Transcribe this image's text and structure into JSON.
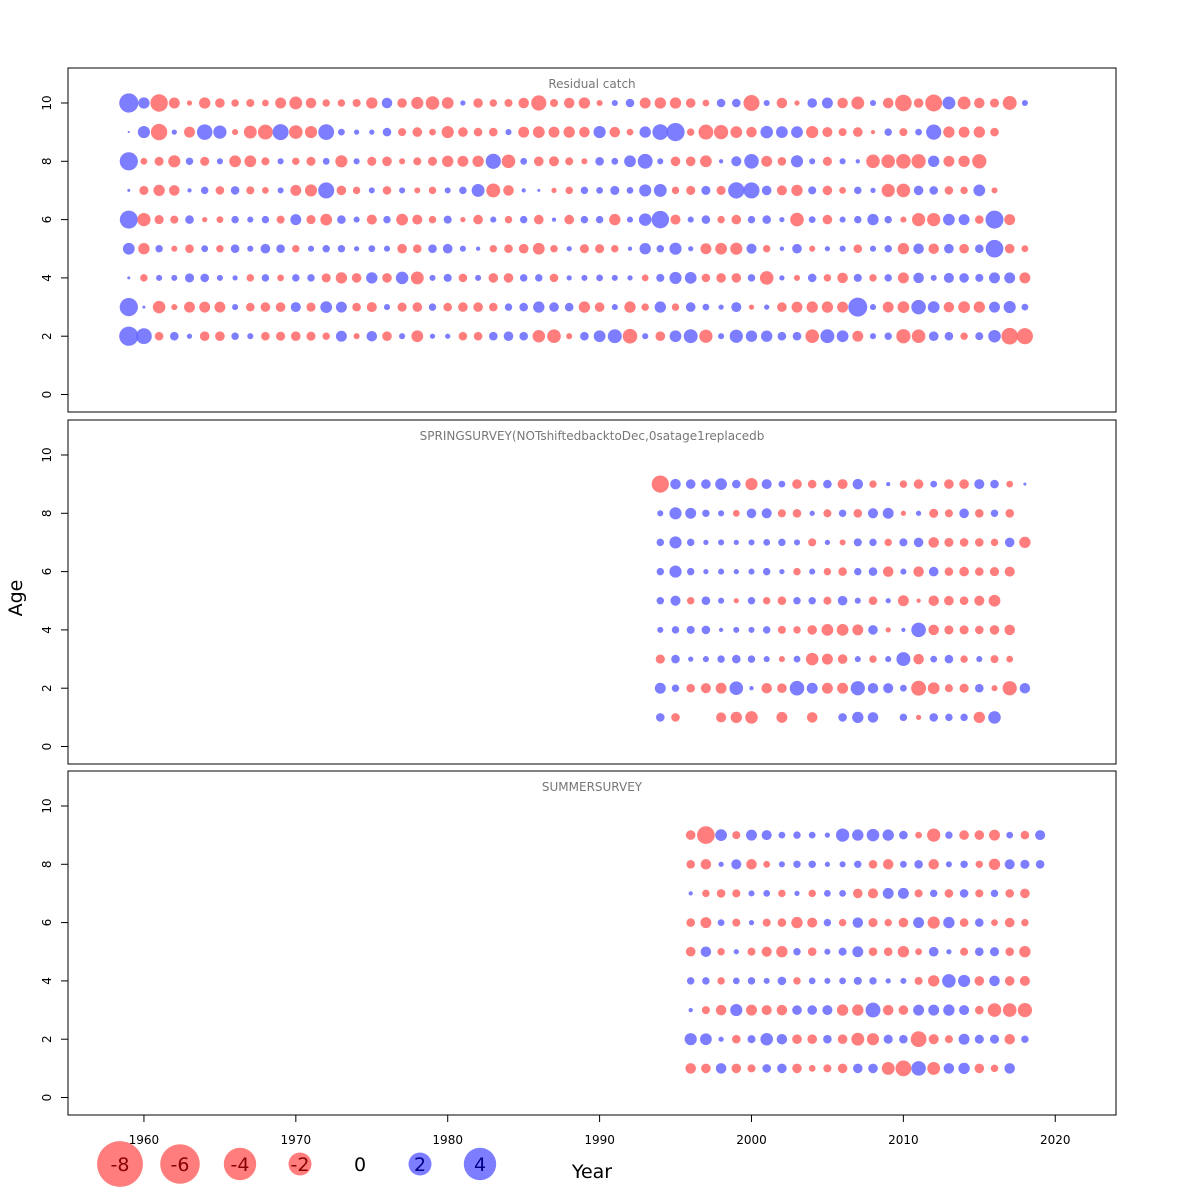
{
  "chart_data": {
    "type": "bubble",
    "xlabel": "Year",
    "ylabel": "Age",
    "xlim": [
      1955,
      2024
    ],
    "ylim": [
      -0.6,
      11.2
    ],
    "x_ticks": [
      1960,
      1970,
      1980,
      1990,
      2000,
      2010,
      2020
    ],
    "y_ticks": [
      0,
      2,
      4,
      6,
      8,
      10
    ],
    "colors": {
      "positive": "#6666ff",
      "negative": "#ff6666"
    },
    "legend": {
      "position": "bottom",
      "items": [
        {
          "label": "-8",
          "value": -8
        },
        {
          "label": "-6",
          "value": -6
        },
        {
          "label": "-4",
          "value": -4
        },
        {
          "label": "-2",
          "value": -2
        },
        {
          "label": "0",
          "value": 0
        },
        {
          "label": "2",
          "value": 2
        },
        {
          "label": "4",
          "value": 4
        }
      ]
    },
    "panels": [
      {
        "title": "Residual catch",
        "year_start": 1959,
        "ages": [
          2,
          3,
          4,
          5,
          6,
          7,
          8,
          9,
          10
        ],
        "rows": {
          "2": [
            4.0,
            2.7,
            -0.8,
            0.8,
            0.3,
            -1.0,
            -1.0,
            0.6,
            0.4,
            -0.8,
            -0.9,
            -1.0,
            -0.9,
            -0.6,
            1.3,
            -0.4,
            1.2,
            -1.0,
            0.4,
            -1.5,
            0.3,
            0.3,
            -0.8,
            -0.8,
            0.8,
            1.0,
            0.8,
            -1.7,
            -2.0,
            -0.4,
            0.8,
            1.5,
            2.1,
            -2.3,
            0.4,
            -1.0,
            1.5,
            2.1,
            -1.9,
            0.4,
            1.9,
            1.4,
            1.4,
            0.8,
            0.8,
            -2.0,
            2.1,
            1.5,
            -1.3,
            0.4,
            0.6,
            -2.2,
            -2.0,
            1.0,
            0.8,
            -0.6,
            0.7,
            1.7,
            -3.0,
            -2.8
          ],
          "3": [
            3.6,
            0.1,
            -1.7,
            -0.4,
            -1.3,
            -1.3,
            -1.3,
            0.4,
            -0.8,
            -1.0,
            -1.0,
            1.1,
            -0.9,
            1.5,
            1.3,
            -0.8,
            -1.1,
            0.4,
            -0.9,
            -1.0,
            0.6,
            -0.8,
            -1.0,
            -1.0,
            -0.8,
            0.6,
            0.8,
            1.4,
            1.0,
            0.8,
            -1.4,
            -1.0,
            0.4,
            -1.4,
            -0.6,
            1.4,
            -0.6,
            1.0,
            0.5,
            0.3,
            1.1,
            -0.3,
            0.3,
            -1.0,
            -1.3,
            -1.4,
            -1.4,
            -1.3,
            3.9,
            0.4,
            -1.3,
            -1.5,
            2.3,
            1.5,
            -1.2,
            -1.5,
            -1.4,
            1.3,
            1.6,
            0.5
          ],
          "4": [
            0.1,
            -0.6,
            0.4,
            0.4,
            0.9,
            0.8,
            0.4,
            0.3,
            -0.6,
            0.6,
            -0.5,
            0.6,
            0.6,
            -0.9,
            -1.4,
            -1.0,
            1.4,
            -1.0,
            1.7,
            -1.8,
            0.4,
            0.7,
            -0.8,
            0.4,
            -1.0,
            -1.0,
            0.6,
            0.6,
            -0.8,
            0.3,
            0.4,
            0.5,
            0.4,
            0.3,
            -0.5,
            0.7,
            1.6,
            1.5,
            -0.8,
            -1.0,
            -1.0,
            0.6,
            -2.0,
            0.3,
            -0.4,
            0.8,
            -0.6,
            -1.2,
            0.7,
            -0.6,
            0.6,
            -1.3,
            1.2,
            0.4,
            1.1,
            1.0,
            0.7,
            1.3,
            1.3,
            -1.3
          ],
          "5": [
            1.5,
            -1.4,
            0.6,
            -0.4,
            -0.8,
            0.5,
            -0.6,
            0.8,
            0.4,
            1.0,
            0.8,
            -0.6,
            0.4,
            0.6,
            0.6,
            0.3,
            0.5,
            0.4,
            -1.0,
            -0.8,
            0.8,
            1.0,
            0.4,
            0.2,
            -0.6,
            -0.8,
            -1.0,
            -1.5,
            -0.6,
            0.3,
            -0.9,
            -0.9,
            -0.6,
            0.2,
            1.4,
            0.6,
            1.6,
            0.3,
            -1.3,
            -1.5,
            -1.6,
            1.1,
            -0.6,
            0.2,
            1.0,
            -0.4,
            0.3,
            0.4,
            -0.8,
            0.4,
            0.6,
            -1.4,
            1.2,
            -1.2,
            1.0,
            -1.0,
            0.8,
            3.4,
            -1.0,
            -0.5
          ],
          "6": [
            3.5,
            -1.9,
            -0.9,
            -0.7,
            0.8,
            -0.3,
            -0.5,
            0.6,
            0.4,
            0.6,
            -0.7,
            1.3,
            -0.9,
            -1.5,
            0.8,
            0.4,
            -1.1,
            0.6,
            -1.5,
            -1.1,
            -0.6,
            0.7,
            -0.3,
            -1.0,
            0.4,
            -0.6,
            0.6,
            -1.0,
            0.2,
            -1.0,
            0.6,
            0.6,
            -1.4,
            0.4,
            1.7,
            3.3,
            -1.1,
            0.4,
            0.8,
            -0.6,
            -1.0,
            0.6,
            0.8,
            0.3,
            -2.0,
            0.5,
            -1.0,
            0.4,
            0.6,
            1.4,
            0.6,
            -0.4,
            -1.9,
            -1.9,
            1.5,
            1.3,
            -0.8,
            3.5,
            -1.3
          ],
          "7": [
            0.1,
            -0.9,
            -1.4,
            -1.2,
            0.2,
            0.6,
            -0.8,
            0.8,
            -0.7,
            -0.5,
            0.4,
            -1.3,
            -1.6,
            2.8,
            -1.0,
            -0.6,
            0.4,
            -0.8,
            0.4,
            -0.4,
            -0.6,
            0.4,
            0.6,
            1.8,
            -2.1,
            -1.2,
            0.2,
            0.1,
            -0.3,
            -0.6,
            0.6,
            0.5,
            0.9,
            0.5,
            1.6,
            1.8,
            -0.6,
            -0.9,
            0.9,
            -0.9,
            2.9,
            2.8,
            1.0,
            -1.1,
            -1.4,
            0.7,
            -1.0,
            -0.5,
            0.6,
            0.3,
            -1.9,
            -2.0,
            1.0,
            0.8,
            -0.8,
            -0.6,
            1.5,
            -0.4
          ],
          "8": [
            3.6,
            -0.5,
            -0.9,
            -1.6,
            0.6,
            -0.9,
            0.4,
            -1.5,
            -1.5,
            -0.7,
            0.4,
            -0.6,
            -0.9,
            0.5,
            -1.6,
            0.4,
            -0.9,
            -1.0,
            -0.4,
            -0.7,
            -0.9,
            -1.4,
            -1.3,
            -1.4,
            2.5,
            -2.0,
            0.5,
            -1.0,
            -1.1,
            -0.7,
            -0.4,
            0.8,
            0.5,
            1.5,
            2.4,
            0.4,
            -1.0,
            -1.0,
            -1.5,
            0.2,
            1.1,
            2.3,
            -1.3,
            -0.8,
            1.6,
            0.4,
            -0.9,
            0.4,
            0.2,
            -2.0,
            -2.0,
            -2.3,
            -2.2,
            1.4,
            -1.3,
            -1.4,
            -2.2
          ],
          "9": [
            0.05,
            1.6,
            -2.9,
            0.3,
            -1.3,
            2.6,
            1.9,
            -0.4,
            -1.8,
            -2.4,
            2.8,
            -2.0,
            -1.6,
            2.7,
            0.5,
            0.3,
            0.3,
            0.8,
            -0.7,
            -1.0,
            -0.5,
            -1.6,
            -1.0,
            -0.8,
            -0.8,
            0.4,
            -1.3,
            -1.5,
            -1.3,
            -1.4,
            -1.2,
            1.6,
            -1.2,
            -0.5,
            1.4,
            2.7,
            3.6,
            -0.6,
            -2.4,
            -2.2,
            -1.5,
            -1.2,
            1.7,
            1.5,
            1.5,
            -1.6,
            -1.1,
            -0.7,
            -1.0,
            -0.2,
            0.6,
            -0.7,
            0.5,
            2.5,
            -1.4,
            -1.3,
            -1.4,
            -0.8
          ],
          "10": [
            4.0,
            1.4,
            -3.3,
            -1.3,
            -0.3,
            -1.4,
            -1.0,
            -0.6,
            -0.7,
            -0.5,
            -1.3,
            -1.8,
            -1.2,
            -0.6,
            -0.6,
            -0.7,
            -1.4,
            1.2,
            -1.0,
            -1.6,
            -2.0,
            -1.5,
            0.3,
            -1.0,
            -0.6,
            -0.7,
            -1.2,
            -2.5,
            -0.7,
            -1.2,
            -1.4,
            -0.4,
            0.4,
            0.8,
            -1.3,
            -1.4,
            -1.4,
            -1.0,
            -0.5,
            0.8,
            0.8,
            -2.8,
            0.4,
            -1.2,
            -0.3,
            1.0,
            1.3,
            -1.2,
            -1.8,
            0.4,
            -1.2,
            -3.0,
            -1.0,
            -3.1,
            1.8,
            -1.8,
            -1.2,
            -0.9,
            -2.1,
            0.4
          ]
        }
      },
      {
        "title": "SPRINGSURVEY(NOTshiftedbacktoDec,0satage1replacedb",
        "year_start": 1994,
        "ages": [
          1,
          2,
          3,
          4,
          5,
          6,
          7,
          8,
          9
        ],
        "rows": {
          "1": [
            0.8,
            -0.8,
            0,
            0,
            -1.1,
            -1.4,
            -1.7,
            0,
            -1.3,
            0,
            -1.2,
            0,
            0.8,
            1.4,
            1.2,
            0,
            0.6,
            -0.3,
            0.8,
            0.6,
            0.6,
            -1.4,
            1.7
          ],
          "2": [
            1.3,
            0.6,
            -0.8,
            -1.1,
            -1.3,
            2.0,
            0.2,
            -1.2,
            -1.0,
            2.3,
            1.3,
            -1.3,
            -1.3,
            2.2,
            1.2,
            1.1,
            0.5,
            -2.4,
            -1.5,
            -0.7,
            -0.9,
            0.8,
            -0.4,
            -2.2,
            1.2
          ],
          "3": [
            -0.9,
            0.8,
            0.3,
            0.4,
            0.6,
            0.8,
            0.6,
            0.4,
            -0.4,
            0.5,
            -1.7,
            -1.3,
            -1.0,
            0.4,
            -0.6,
            0.4,
            2.1,
            -1.2,
            0.5,
            0.8,
            -0.6,
            0.4,
            -0.7,
            -0.5
          ],
          "4": [
            0.4,
            0.6,
            0.7,
            0.8,
            0.2,
            0.4,
            0.4,
            0.6,
            -0.7,
            -0.6,
            -1.0,
            -1.5,
            -1.5,
            -1.3,
            1.0,
            -0.3,
            0.2,
            2.3,
            -1.2,
            -0.9,
            -0.9,
            -0.8,
            -1.0,
            -1.2
          ],
          "5": [
            0.6,
            1.1,
            -0.6,
            0.8,
            0.4,
            -0.3,
            0.6,
            -0.6,
            -0.8,
            0.6,
            0.6,
            -0.7,
            1.0,
            0.4,
            -0.8,
            0.3,
            -1.3,
            -0.2,
            -1.2,
            -1.0,
            -0.8,
            -1.1,
            -1.5
          ],
          "6": [
            0.6,
            1.6,
            0.6,
            0.3,
            0.4,
            0.3,
            0.4,
            0.6,
            0.3,
            -0.6,
            0.4,
            -0.6,
            -0.8,
            0.6,
            0.8,
            -1.2,
            0.4,
            -1.2,
            1.0,
            -0.8,
            -1.0,
            -0.8,
            -0.9,
            -1.1
          ],
          "7": [
            0.6,
            1.6,
            0.6,
            0.3,
            0.4,
            0.3,
            0.4,
            0.5,
            0.6,
            0.4,
            -0.7,
            0.3,
            -0.4,
            0.7,
            0.6,
            -0.6,
            0.7,
            1.0,
            -1.2,
            -0.9,
            -0.8,
            -0.8,
            -0.6,
            1.0,
            -1.4
          ],
          "8": [
            0.4,
            1.6,
            1.3,
            0.6,
            0.4,
            -0.5,
            1.0,
            1.1,
            -0.7,
            -0.8,
            0.3,
            -0.7,
            0.6,
            -0.8,
            1.1,
            1.3,
            -0.3,
            0.3,
            -0.9,
            -0.7,
            1.0,
            -0.8,
            0.6,
            -0.8
          ],
          "9": [
            -3.2,
            1.2,
            1.0,
            1.0,
            1.5,
            0.8,
            -1.6,
            1.1,
            0.5,
            -1.0,
            -0.8,
            0.8,
            -1.1,
            1.2,
            -0.6,
            0.2,
            -0.6,
            -1.0,
            0.5,
            -1.0,
            -1.0,
            1.1,
            0.8,
            -0.5,
            0.1
          ]
        }
      },
      {
        "title": "SUMMERSURVEY",
        "year_start": 1996,
        "ages": [
          1,
          2,
          3,
          4,
          5,
          6,
          7,
          8,
          9
        ],
        "rows": {
          "1": [
            -1.2,
            -1.0,
            1.2,
            -1.0,
            -0.7,
            0.8,
            1.0,
            -1.0,
            -0.5,
            -0.7,
            -1.0,
            1.0,
            1.0,
            -1.8,
            -2.7,
            2.3,
            -1.8,
            1.2,
            1.4,
            -1.0,
            -0.6,
            1.2
          ],
          "2": [
            1.6,
            1.5,
            0.3,
            -0.8,
            0.7,
            1.7,
            1.2,
            -1.0,
            -1.0,
            0.8,
            -1.0,
            -1.8,
            -1.6,
            0.9,
            0.8,
            -2.7,
            -1.1,
            -0.7,
            1.3,
            0.9,
            0.9,
            -1.2,
            0.6
          ],
          "3": [
            0.2,
            -0.7,
            -1.2,
            1.6,
            -1.3,
            -1.1,
            -1.2,
            1.0,
            1.0,
            1.1,
            -1.4,
            -1.4,
            2.4,
            -1.2,
            -1.0,
            1.3,
            1.3,
            1.4,
            1.1,
            -0.8,
            -2.0,
            -2.0,
            -2.2
          ],
          "4": [
            0.6,
            0.6,
            -0.6,
            0.5,
            0.6,
            0.4,
            0.8,
            -0.6,
            0.5,
            0.4,
            0.5,
            0.7,
            0.6,
            0.3,
            0.4,
            -0.7,
            -1.4,
            2.0,
            1.6,
            -1.0,
            1.2,
            -1.0,
            -1.1
          ],
          "5": [
            -1.0,
            1.2,
            -0.6,
            0.3,
            -0.7,
            -1.1,
            -1.4,
            0.6,
            -0.8,
            0.4,
            0.7,
            1.3,
            -0.8,
            -0.8,
            -1.4,
            -0.5,
            1.0,
            0.3,
            -0.7,
            0.8,
            0.9,
            -0.8,
            -1.4
          ],
          "6": [
            -0.8,
            -1.3,
            0.5,
            -0.7,
            0.3,
            -0.7,
            -0.8,
            -1.4,
            -1.1,
            0.6,
            -0.6,
            1.2,
            -0.9,
            -0.6,
            -1.0,
            1.3,
            -1.6,
            1.4,
            -0.8,
            0.8,
            -0.5,
            -1.0,
            -0.6
          ],
          "7": [
            0.2,
            -0.6,
            -0.8,
            -0.7,
            0.4,
            0.5,
            -0.6,
            0.3,
            -0.6,
            0.5,
            0.5,
            -1.0,
            -1.1,
            1.3,
            1.3,
            -0.7,
            0.6,
            -0.8,
            0.8,
            -0.7,
            0.6,
            -0.8,
            -1.0
          ],
          "8": [
            -0.8,
            -1.2,
            0.3,
            1.1,
            -1.2,
            -0.5,
            0.4,
            0.6,
            0.6,
            0.3,
            0.4,
            0.6,
            -0.8,
            -1.2,
            0.5,
            0.8,
            -1.2,
            0.4,
            0.6,
            -0.6,
            -1.4,
            1.1,
            0.9,
            0.8
          ],
          "9": [
            -1.0,
            -3.4,
            1.5,
            -0.7,
            1.3,
            1.1,
            0.5,
            0.6,
            0.5,
            0.3,
            1.9,
            1.4,
            1.7,
            1.4,
            0.8,
            -0.5,
            -1.9,
            0.6,
            -1.0,
            -1.0,
            -1.3,
            0.5,
            -0.8,
            1.1
          ]
        }
      }
    ]
  }
}
